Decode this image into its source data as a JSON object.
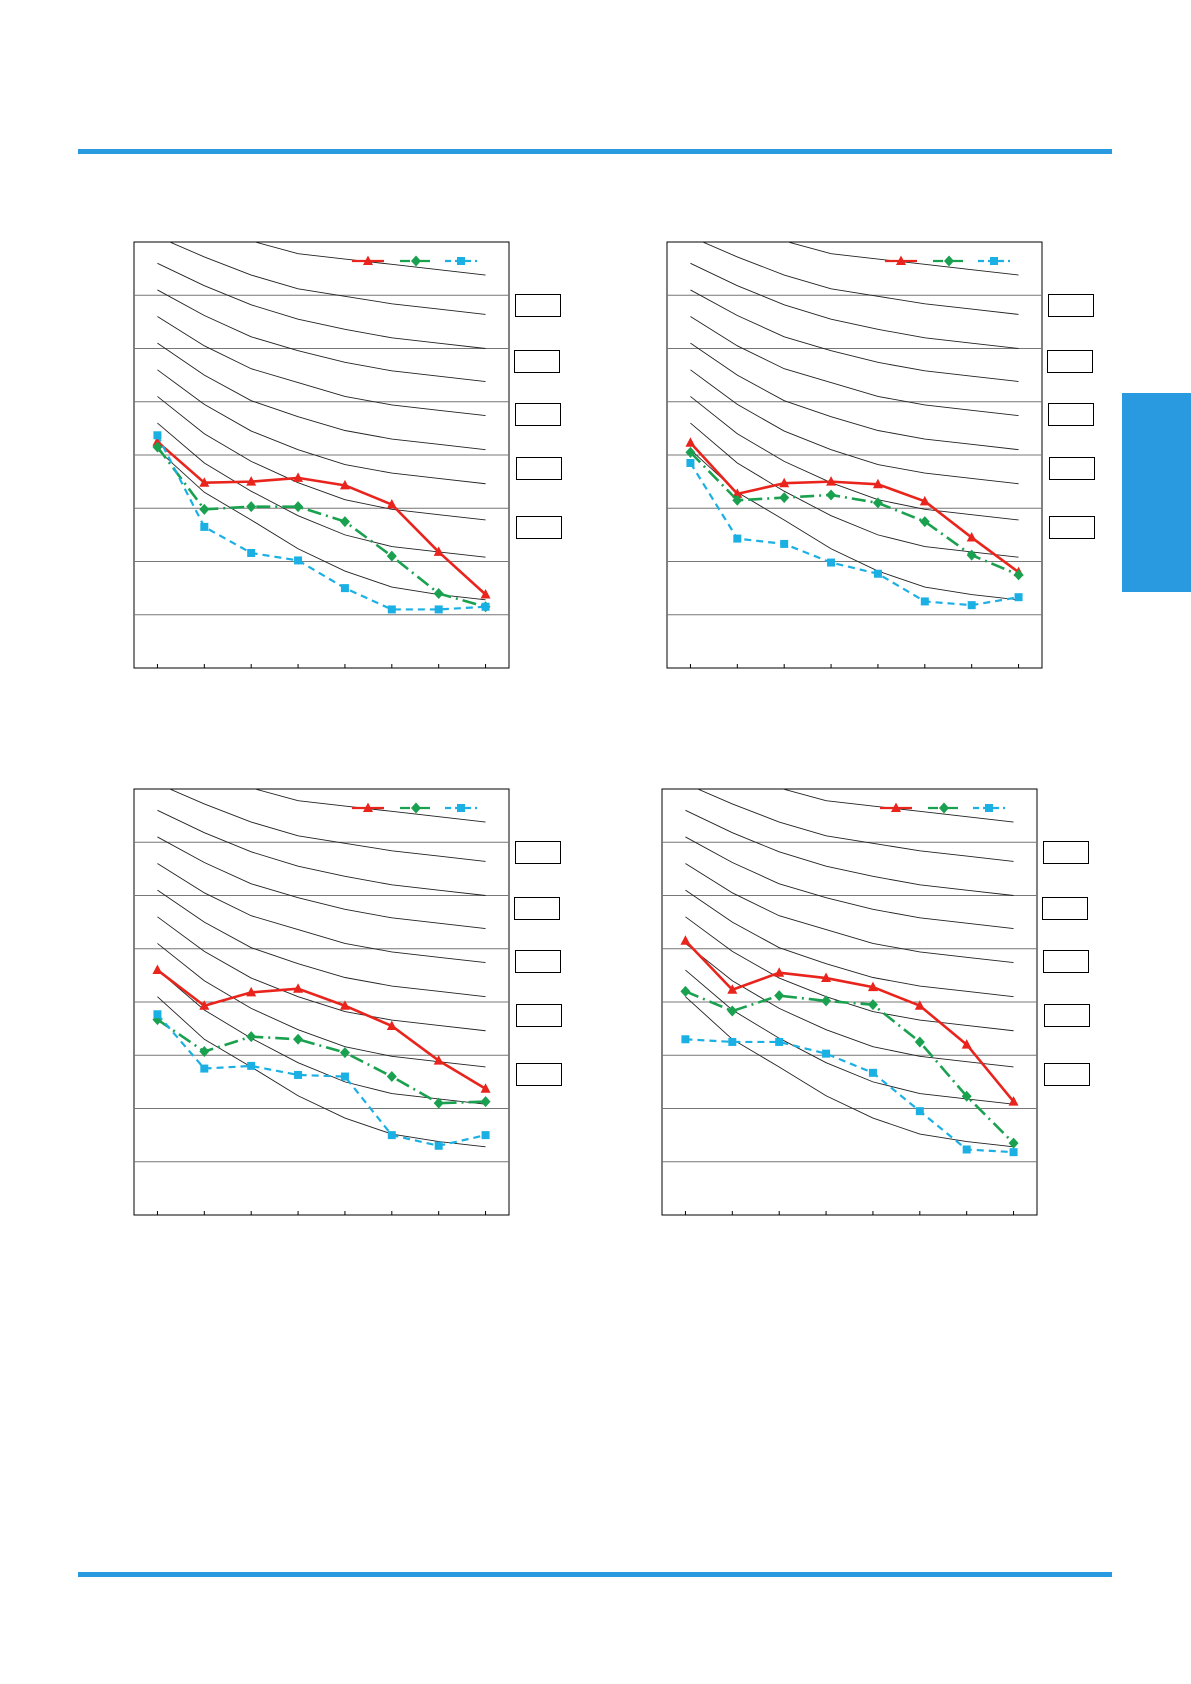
{
  "colors": {
    "accent": "#2a9ae0",
    "series_red": "#e8241c",
    "series_green": "#1aa150",
    "series_blue": "#1bb0e4"
  },
  "chart_data": [
    {
      "type": "line",
      "x": [
        1,
        2,
        3,
        4,
        5,
        6,
        7,
        8
      ],
      "xlim": [
        0.5,
        8.5
      ],
      "ylim": [
        0,
        8
      ],
      "grid": true,
      "legend": "top-right",
      "series": [
        {
          "values": [
            4.25,
            3.48,
            3.5,
            3.57,
            3.43,
            3.07,
            2.18,
            1.38
          ]
        },
        {
          "values": [
            4.15,
            2.98,
            3.03,
            3.03,
            2.75,
            2.1,
            1.4,
            1.15
          ]
        },
        {
          "values": [
            4.37,
            2.65,
            2.16,
            2.02,
            1.5,
            1.1,
            1.1,
            1.15
          ]
        }
      ],
      "reference_curves": [
        [
          8.7,
          8.35,
          8.02,
          7.78,
          7.68,
          7.58,
          7.48,
          7.38
        ],
        [
          8.1,
          7.72,
          7.38,
          7.12,
          6.98,
          6.84,
          6.74,
          6.64
        ],
        [
          7.6,
          7.18,
          6.82,
          6.55,
          6.36,
          6.2,
          6.1,
          6.0
        ],
        [
          7.1,
          6.62,
          6.22,
          5.96,
          5.74,
          5.58,
          5.48,
          5.38
        ],
        [
          6.6,
          6.05,
          5.62,
          5.36,
          5.1,
          4.94,
          4.84,
          4.74
        ],
        [
          6.1,
          5.5,
          5.02,
          4.72,
          4.46,
          4.3,
          4.2,
          4.1
        ],
        [
          5.6,
          4.95,
          4.45,
          4.1,
          3.82,
          3.66,
          3.56,
          3.46
        ],
        [
          5.1,
          4.4,
          3.88,
          3.48,
          3.16,
          2.98,
          2.88,
          2.78
        ],
        [
          4.6,
          3.85,
          3.32,
          2.86,
          2.5,
          2.28,
          2.18,
          2.08
        ],
        [
          4.1,
          3.3,
          2.78,
          2.24,
          1.82,
          1.52,
          1.38,
          1.28
        ]
      ]
    },
    {
      "type": "line",
      "x": [
        1,
        2,
        3,
        4,
        5,
        6,
        7,
        8
      ],
      "xlim": [
        0.5,
        8.5
      ],
      "ylim": [
        0,
        8
      ],
      "grid": true,
      "legend": "top-right",
      "series": [
        {
          "values": [
            4.23,
            3.27,
            3.47,
            3.5,
            3.45,
            3.13,
            2.45,
            1.8
          ]
        },
        {
          "values": [
            4.05,
            3.15,
            3.2,
            3.25,
            3.1,
            2.75,
            2.12,
            1.75
          ]
        },
        {
          "values": [
            3.85,
            2.43,
            2.33,
            1.98,
            1.77,
            1.25,
            1.18,
            1.33
          ]
        }
      ],
      "reference_curves": [
        [
          8.7,
          8.35,
          8.02,
          7.78,
          7.68,
          7.58,
          7.48,
          7.38
        ],
        [
          8.1,
          7.72,
          7.38,
          7.12,
          6.98,
          6.84,
          6.74,
          6.64
        ],
        [
          7.6,
          7.18,
          6.82,
          6.55,
          6.36,
          6.2,
          6.1,
          6.0
        ],
        [
          7.1,
          6.62,
          6.22,
          5.96,
          5.74,
          5.58,
          5.48,
          5.38
        ],
        [
          6.6,
          6.05,
          5.62,
          5.36,
          5.1,
          4.94,
          4.84,
          4.74
        ],
        [
          6.1,
          5.5,
          5.02,
          4.72,
          4.46,
          4.3,
          4.2,
          4.1
        ],
        [
          5.6,
          4.95,
          4.45,
          4.1,
          3.82,
          3.66,
          3.56,
          3.46
        ],
        [
          5.1,
          4.4,
          3.88,
          3.48,
          3.16,
          2.98,
          2.88,
          2.78
        ],
        [
          4.6,
          3.85,
          3.32,
          2.86,
          2.5,
          2.28,
          2.18,
          2.08
        ],
        [
          4.1,
          3.3,
          2.78,
          2.24,
          1.82,
          1.52,
          1.38,
          1.28
        ]
      ]
    },
    {
      "type": "line",
      "x": [
        1,
        2,
        3,
        4,
        5,
        6,
        7,
        8
      ],
      "xlim": [
        0.5,
        8.5
      ],
      "ylim": [
        0,
        8
      ],
      "grid": true,
      "legend": "top-right",
      "series": [
        {
          "values": [
            4.6,
            3.93,
            4.18,
            4.25,
            3.93,
            3.55,
            2.9,
            2.37
          ]
        },
        {
          "values": [
            3.67,
            3.07,
            3.35,
            3.3,
            3.05,
            2.6,
            2.1,
            2.13
          ]
        },
        {
          "values": [
            3.77,
            2.75,
            2.8,
            2.63,
            2.6,
            1.5,
            1.3,
            1.5
          ]
        }
      ],
      "reference_curves": [
        [
          8.7,
          8.35,
          8.02,
          7.78,
          7.68,
          7.58,
          7.48,
          7.38
        ],
        [
          8.1,
          7.72,
          7.38,
          7.12,
          6.98,
          6.84,
          6.74,
          6.64
        ],
        [
          7.6,
          7.18,
          6.82,
          6.55,
          6.36,
          6.2,
          6.1,
          6.0
        ],
        [
          7.1,
          6.62,
          6.22,
          5.96,
          5.74,
          5.58,
          5.48,
          5.38
        ],
        [
          6.6,
          6.05,
          5.62,
          5.36,
          5.1,
          4.94,
          4.84,
          4.74
        ],
        [
          6.1,
          5.5,
          5.02,
          4.72,
          4.46,
          4.3,
          4.2,
          4.1
        ],
        [
          5.6,
          4.95,
          4.45,
          4.1,
          3.82,
          3.66,
          3.56,
          3.46
        ],
        [
          5.1,
          4.4,
          3.88,
          3.48,
          3.16,
          2.98,
          2.88,
          2.78
        ],
        [
          4.6,
          3.85,
          3.32,
          2.86,
          2.5,
          2.28,
          2.18,
          2.08
        ],
        [
          4.1,
          3.3,
          2.78,
          2.24,
          1.82,
          1.52,
          1.38,
          1.28
        ]
      ]
    },
    {
      "type": "line",
      "x": [
        1,
        2,
        3,
        4,
        5,
        6,
        7,
        8
      ],
      "xlim": [
        0.5,
        8.5
      ],
      "ylim": [
        0,
        8
      ],
      "grid": true,
      "legend": "top-right",
      "series": [
        {
          "values": [
            5.15,
            4.23,
            4.55,
            4.45,
            4.28,
            3.93,
            3.2,
            2.13
          ]
        },
        {
          "values": [
            4.2,
            3.83,
            4.12,
            4.02,
            3.95,
            3.25,
            2.23,
            1.35
          ]
        },
        {
          "values": [
            3.3,
            3.25,
            3.25,
            3.03,
            2.67,
            1.95,
            1.23,
            1.18
          ]
        }
      ],
      "reference_curves": [
        [
          8.7,
          8.35,
          8.02,
          7.78,
          7.68,
          7.58,
          7.48,
          7.38
        ],
        [
          8.1,
          7.72,
          7.38,
          7.12,
          6.98,
          6.84,
          6.74,
          6.64
        ],
        [
          7.6,
          7.18,
          6.82,
          6.55,
          6.36,
          6.2,
          6.1,
          6.0
        ],
        [
          7.1,
          6.62,
          6.22,
          5.96,
          5.74,
          5.58,
          5.48,
          5.38
        ],
        [
          6.6,
          6.05,
          5.62,
          5.36,
          5.1,
          4.94,
          4.84,
          4.74
        ],
        [
          6.1,
          5.5,
          5.02,
          4.72,
          4.46,
          4.3,
          4.2,
          4.1
        ],
        [
          5.6,
          4.95,
          4.45,
          4.1,
          3.82,
          3.66,
          3.56,
          3.46
        ],
        [
          5.1,
          4.4,
          3.88,
          3.48,
          3.16,
          2.98,
          2.88,
          2.78
        ],
        [
          4.6,
          3.85,
          3.32,
          2.86,
          2.5,
          2.28,
          2.18,
          2.08
        ],
        [
          4.1,
          3.3,
          2.78,
          2.24,
          1.82,
          1.52,
          1.38,
          1.28
        ]
      ]
    }
  ]
}
